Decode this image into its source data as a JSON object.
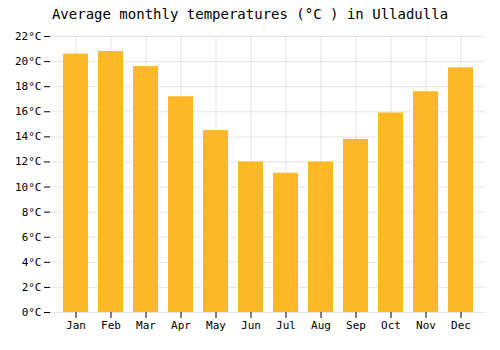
{
  "chart_data": {
    "type": "bar",
    "title": "Average monthly temperatures (°C ) in Ulladulla",
    "categories": [
      "Jan",
      "Feb",
      "Mar",
      "Apr",
      "May",
      "Jun",
      "Jul",
      "Aug",
      "Sep",
      "Oct",
      "Nov",
      "Dec"
    ],
    "values": [
      20.6,
      20.8,
      19.6,
      17.2,
      14.5,
      12.0,
      11.1,
      12.0,
      13.8,
      15.9,
      17.6,
      19.5
    ],
    "color": "#FDB827",
    "ylim": [
      0,
      22
    ],
    "yticks": [
      {
        "value": 0,
        "label": "0°C"
      },
      {
        "value": 2,
        "label": "2°C"
      },
      {
        "value": 4,
        "label": "4°C"
      },
      {
        "value": 6,
        "label": "6°C"
      },
      {
        "value": 8,
        "label": "8°C"
      },
      {
        "value": 10,
        "label": "10°C"
      },
      {
        "value": 12,
        "label": "12°C"
      },
      {
        "value": 14,
        "label": "14°C"
      },
      {
        "value": 16,
        "label": "16°C"
      },
      {
        "value": 18,
        "label": "18°C"
      },
      {
        "value": 20,
        "label": "20°C"
      },
      {
        "value": 22,
        "label": "22°C"
      }
    ],
    "grid": true
  }
}
